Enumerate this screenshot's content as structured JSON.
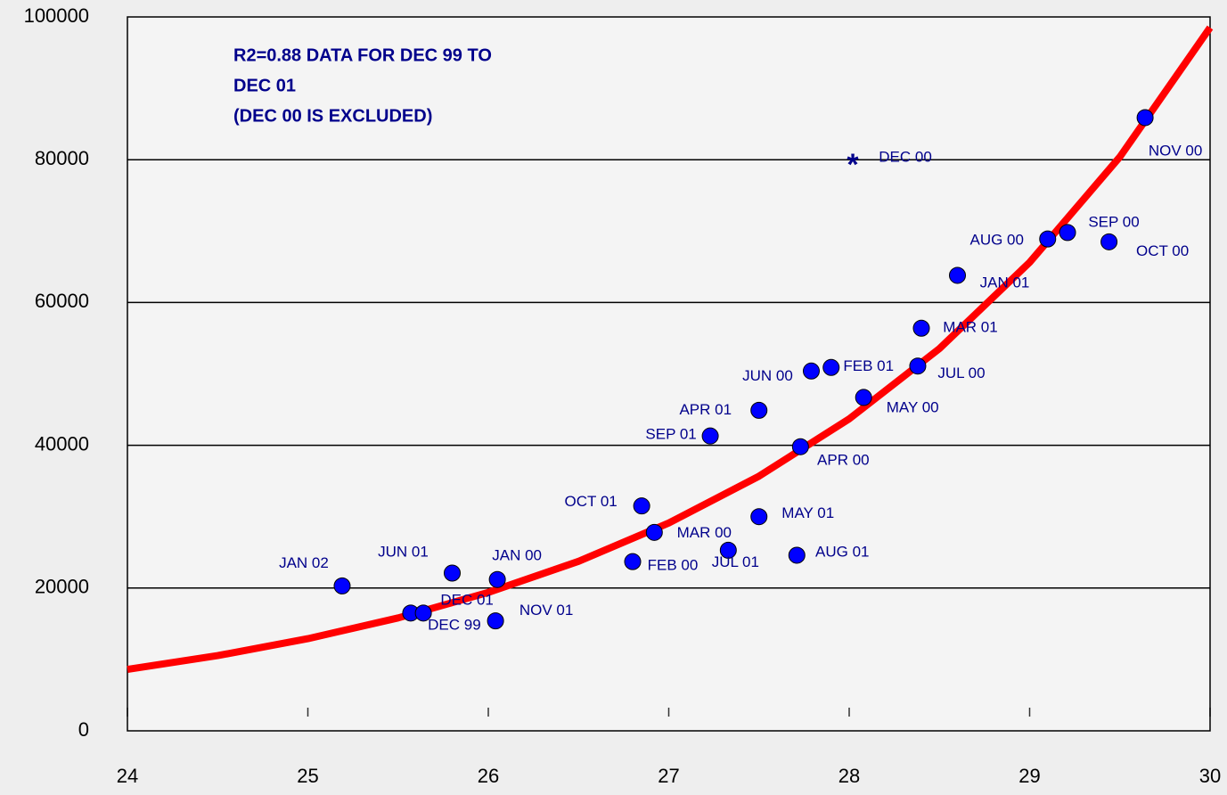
{
  "chart_data": {
    "type": "scatter",
    "annotation": [
      "R2=0.88 DATA FOR DEC 99 TO",
      "DEC 01",
      "(DEC 00  IS EXCLUDED)"
    ],
    "xlim": [
      24,
      30
    ],
    "xticks": [
      24,
      25,
      26,
      27,
      28,
      29,
      30
    ],
    "ylim": [
      0,
      100000
    ],
    "yticks": [
      0,
      20000,
      40000,
      60000,
      80000,
      100000
    ],
    "grid": true,
    "points": {
      "color": "#0000ff",
      "labels": [
        "JAN 02",
        "DEC 99",
        "DEC 01",
        "JUN 01",
        "JAN 00",
        "NOV  01",
        "FEB 00",
        "OCT 01",
        "MAR 00",
        "JUL 01",
        "MAY 01",
        "AUG 01",
        "SEP 01",
        "APR 01",
        "APR 00",
        "JUN 00",
        "FEB 01",
        "MAY 00",
        "JUL 00",
        "MAR 01",
        "JAN 01",
        "AUG 00",
        "SEP 00",
        "OCT 00",
        "NOV 00"
      ],
      "x": [
        25.19,
        25.57,
        25.64,
        25.8,
        26.05,
        26.04,
        26.8,
        26.85,
        26.92,
        27.33,
        27.5,
        27.71,
        27.23,
        27.5,
        27.73,
        27.79,
        27.9,
        28.08,
        28.38,
        28.4,
        28.6,
        29.1,
        29.21,
        29.44,
        29.64
      ],
      "values": [
        20300,
        16500,
        16500,
        22100,
        21200,
        15400,
        23700,
        31500,
        27800,
        25300,
        30000,
        24600,
        41300,
        44900,
        39800,
        50400,
        50900,
        46700,
        51100,
        56400,
        63800,
        68900,
        69800,
        68500,
        85900
      ]
    },
    "outlier": {
      "label": "DEC 00",
      "x": 28.02,
      "value": 79800,
      "marker": "star",
      "color": "#00008b"
    },
    "trend": {
      "color": "#ff0000",
      "x": [
        24,
        24.5,
        25,
        25.5,
        26,
        26.5,
        27,
        27.5,
        28,
        28.5,
        29,
        29.5,
        30
      ],
      "values": [
        8600,
        10540,
        12910,
        15820,
        19390,
        23750,
        29110,
        35670,
        43700,
        53550,
        65620,
        80400,
        98510
      ]
    }
  }
}
